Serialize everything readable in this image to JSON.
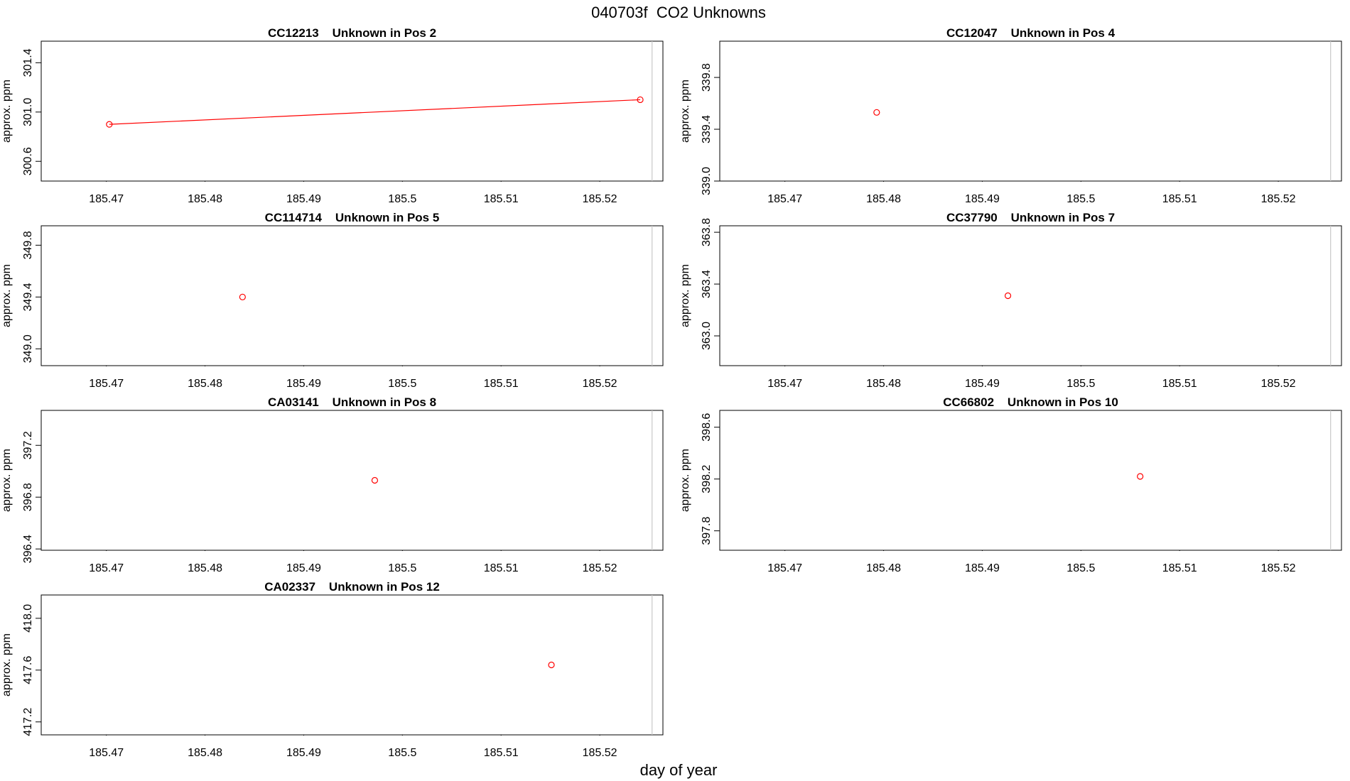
{
  "title": "040703f  CO2 Unknowns",
  "xlabel": "day of year",
  "chart_data": [
    {
      "type": "line",
      "title": "CC12213    Unknown in Pos 2",
      "ylabel": "approx. ppm",
      "color": "#ff0000",
      "x": [
        185.4703,
        185.5241
      ],
      "values": [
        300.9,
        301.1
      ],
      "vline": 185.5253,
      "xlim": [
        185.4634,
        185.5264
      ],
      "xticks": [
        185.47,
        185.48,
        185.49,
        185.5,
        185.51,
        185.52
      ],
      "ylim": [
        300.44,
        301.575
      ],
      "yticks": [
        300.6,
        {
          "value": 301,
          "label": "301.0"
        },
        301.4
      ]
    },
    {
      "type": "scatter",
      "title": "CC12047    Unknown in Pos 4",
      "ylabel": "approx. ppm",
      "color": "#ff0000",
      "x": [
        185.4793
      ],
      "values": [
        339.53
      ],
      "vline": 185.5253,
      "xlim": [
        185.4634,
        185.5264
      ],
      "xticks": [
        185.47,
        185.48,
        185.49,
        185.5,
        185.51,
        185.52
      ],
      "ylim": [
        339.0,
        340.08
      ],
      "yticks": [
        {
          "value": 339,
          "label": "339.0"
        },
        339.4,
        339.8
      ]
    },
    {
      "type": "scatter",
      "title": "CC114714    Unknown in Pos 5",
      "ylabel": "approx. ppm",
      "color": "#ff0000",
      "x": [
        185.4838
      ],
      "values": [
        349.4
      ],
      "vline": 185.5253,
      "xlim": [
        185.4634,
        185.5264
      ],
      "xticks": [
        185.47,
        185.48,
        185.49,
        185.5,
        185.51,
        185.52
      ],
      "ylim": [
        348.87,
        349.95
      ],
      "yticks": [
        {
          "value": 349,
          "label": "349.0"
        },
        349.4,
        349.8
      ]
    },
    {
      "type": "scatter",
      "title": "CC37790    Unknown in Pos 7",
      "ylabel": "approx. ppm",
      "color": "#ff0000",
      "x": [
        185.4926
      ],
      "values": [
        363.31
      ],
      "vline": 185.5253,
      "xlim": [
        185.4634,
        185.5264
      ],
      "xticks": [
        185.47,
        185.48,
        185.49,
        185.5,
        185.51,
        185.52
      ],
      "ylim": [
        362.77,
        363.85
      ],
      "yticks": [
        {
          "value": 363,
          "label": "363.0"
        },
        363.4,
        363.8
      ]
    },
    {
      "type": "scatter",
      "title": "CA03141    Unknown in Pos 8",
      "ylabel": "approx. ppm",
      "color": "#ff0000",
      "x": [
        185.4972
      ],
      "values": [
        396.93
      ],
      "vline": 185.5253,
      "xlim": [
        185.4634,
        185.5264
      ],
      "xticks": [
        185.47,
        185.48,
        185.49,
        185.5,
        185.51,
        185.52
      ],
      "ylim": [
        396.39,
        397.47
      ],
      "yticks": [
        396.4,
        396.8,
        397.2
      ]
    },
    {
      "type": "scatter",
      "title": "CC66802    Unknown in Pos 10",
      "ylabel": "approx. ppm",
      "color": "#ff0000",
      "x": [
        185.506
      ],
      "values": [
        398.22
      ],
      "vline": 185.5253,
      "xlim": [
        185.4634,
        185.5264
      ],
      "xticks": [
        185.47,
        185.48,
        185.49,
        185.5,
        185.51,
        185.52
      ],
      "ylim": [
        397.65,
        398.73
      ],
      "yticks": [
        397.8,
        398.2,
        398.6
      ]
    },
    {
      "type": "scatter",
      "title": "CA02337    Unknown in Pos 12",
      "ylabel": "approx. ppm",
      "color": "#ff0000",
      "x": [
        185.5151
      ],
      "values": [
        417.64
      ],
      "vline": 185.5253,
      "xlim": [
        185.4634,
        185.5264
      ],
      "xticks": [
        185.47,
        185.48,
        185.49,
        185.5,
        185.51,
        185.52
      ],
      "ylim": [
        417.1,
        418.18
      ],
      "yticks": [
        417.2,
        417.6,
        {
          "value": 418,
          "label": "418.0"
        }
      ]
    }
  ]
}
